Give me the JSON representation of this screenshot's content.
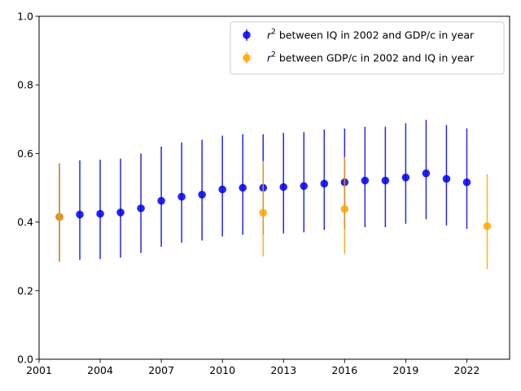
{
  "chart_data": {
    "type": "scatter",
    "xlim": [
      2001,
      2024.1
    ],
    "ylim": [
      0,
      1
    ],
    "x_ticks": [
      2001,
      2004,
      2007,
      2010,
      2013,
      2016,
      2019,
      2022
    ],
    "x_tick_labels": [
      "2001",
      "2004",
      "2007",
      "2010",
      "2013",
      "2016",
      "2019",
      "2022"
    ],
    "y_ticks": [
      0,
      0.2,
      0.4,
      0.6,
      0.8,
      1.0
    ],
    "y_tick_labels": [
      "0.0",
      "0.2",
      "0.4",
      "0.6",
      "0.8",
      "1.0"
    ],
    "grid": false,
    "legend_position": "top-right",
    "series": [
      {
        "name_prefix": "r",
        "name_sup": "2",
        "name_suffix": " between IQ in 2002 and GDP/c in year",
        "color": "#0000ee",
        "points": [
          {
            "x": 2002,
            "y": 0.415,
            "lo": 0.285,
            "hi": 0.57
          },
          {
            "x": 2003,
            "y": 0.422,
            "lo": 0.29,
            "hi": 0.58
          },
          {
            "x": 2004,
            "y": 0.424,
            "lo": 0.292,
            "hi": 0.582
          },
          {
            "x": 2005,
            "y": 0.428,
            "lo": 0.296,
            "hi": 0.585
          },
          {
            "x": 2006,
            "y": 0.44,
            "lo": 0.31,
            "hi": 0.6
          },
          {
            "x": 2007,
            "y": 0.462,
            "lo": 0.328,
            "hi": 0.62
          },
          {
            "x": 2008,
            "y": 0.474,
            "lo": 0.34,
            "hi": 0.632
          },
          {
            "x": 2009,
            "y": 0.48,
            "lo": 0.346,
            "hi": 0.64
          },
          {
            "x": 2010,
            "y": 0.495,
            "lo": 0.358,
            "hi": 0.652
          },
          {
            "x": 2011,
            "y": 0.5,
            "lo": 0.363,
            "hi": 0.656
          },
          {
            "x": 2012,
            "y": 0.5,
            "lo": 0.363,
            "hi": 0.656
          },
          {
            "x": 2013,
            "y": 0.502,
            "lo": 0.367,
            "hi": 0.66
          },
          {
            "x": 2014,
            "y": 0.505,
            "lo": 0.37,
            "hi": 0.662
          },
          {
            "x": 2015,
            "y": 0.512,
            "lo": 0.377,
            "hi": 0.67
          },
          {
            "x": 2016,
            "y": 0.516,
            "lo": 0.38,
            "hi": 0.673
          },
          {
            "x": 2017,
            "y": 0.521,
            "lo": 0.385,
            "hi": 0.678
          },
          {
            "x": 2018,
            "y": 0.521,
            "lo": 0.385,
            "hi": 0.678
          },
          {
            "x": 2019,
            "y": 0.53,
            "lo": 0.395,
            "hi": 0.688
          },
          {
            "x": 2020,
            "y": 0.542,
            "lo": 0.408,
            "hi": 0.698
          },
          {
            "x": 2021,
            "y": 0.526,
            "lo": 0.39,
            "hi": 0.683
          },
          {
            "x": 2022,
            "y": 0.516,
            "lo": 0.38,
            "hi": 0.673
          }
        ]
      },
      {
        "name_prefix": "r",
        "name_sup": "2",
        "name_suffix": " between GDP/c in 2002 and IQ in year",
        "color": "#ffa500",
        "points": [
          {
            "x": 2002,
            "y": 0.415,
            "lo": 0.283,
            "hi": 0.572
          },
          {
            "x": 2012,
            "y": 0.427,
            "lo": 0.3,
            "hi": 0.578
          },
          {
            "x": 2016,
            "y": 0.438,
            "lo": 0.308,
            "hi": 0.59
          },
          {
            "x": 2023,
            "y": 0.388,
            "lo": 0.263,
            "hi": 0.54
          }
        ]
      }
    ]
  }
}
